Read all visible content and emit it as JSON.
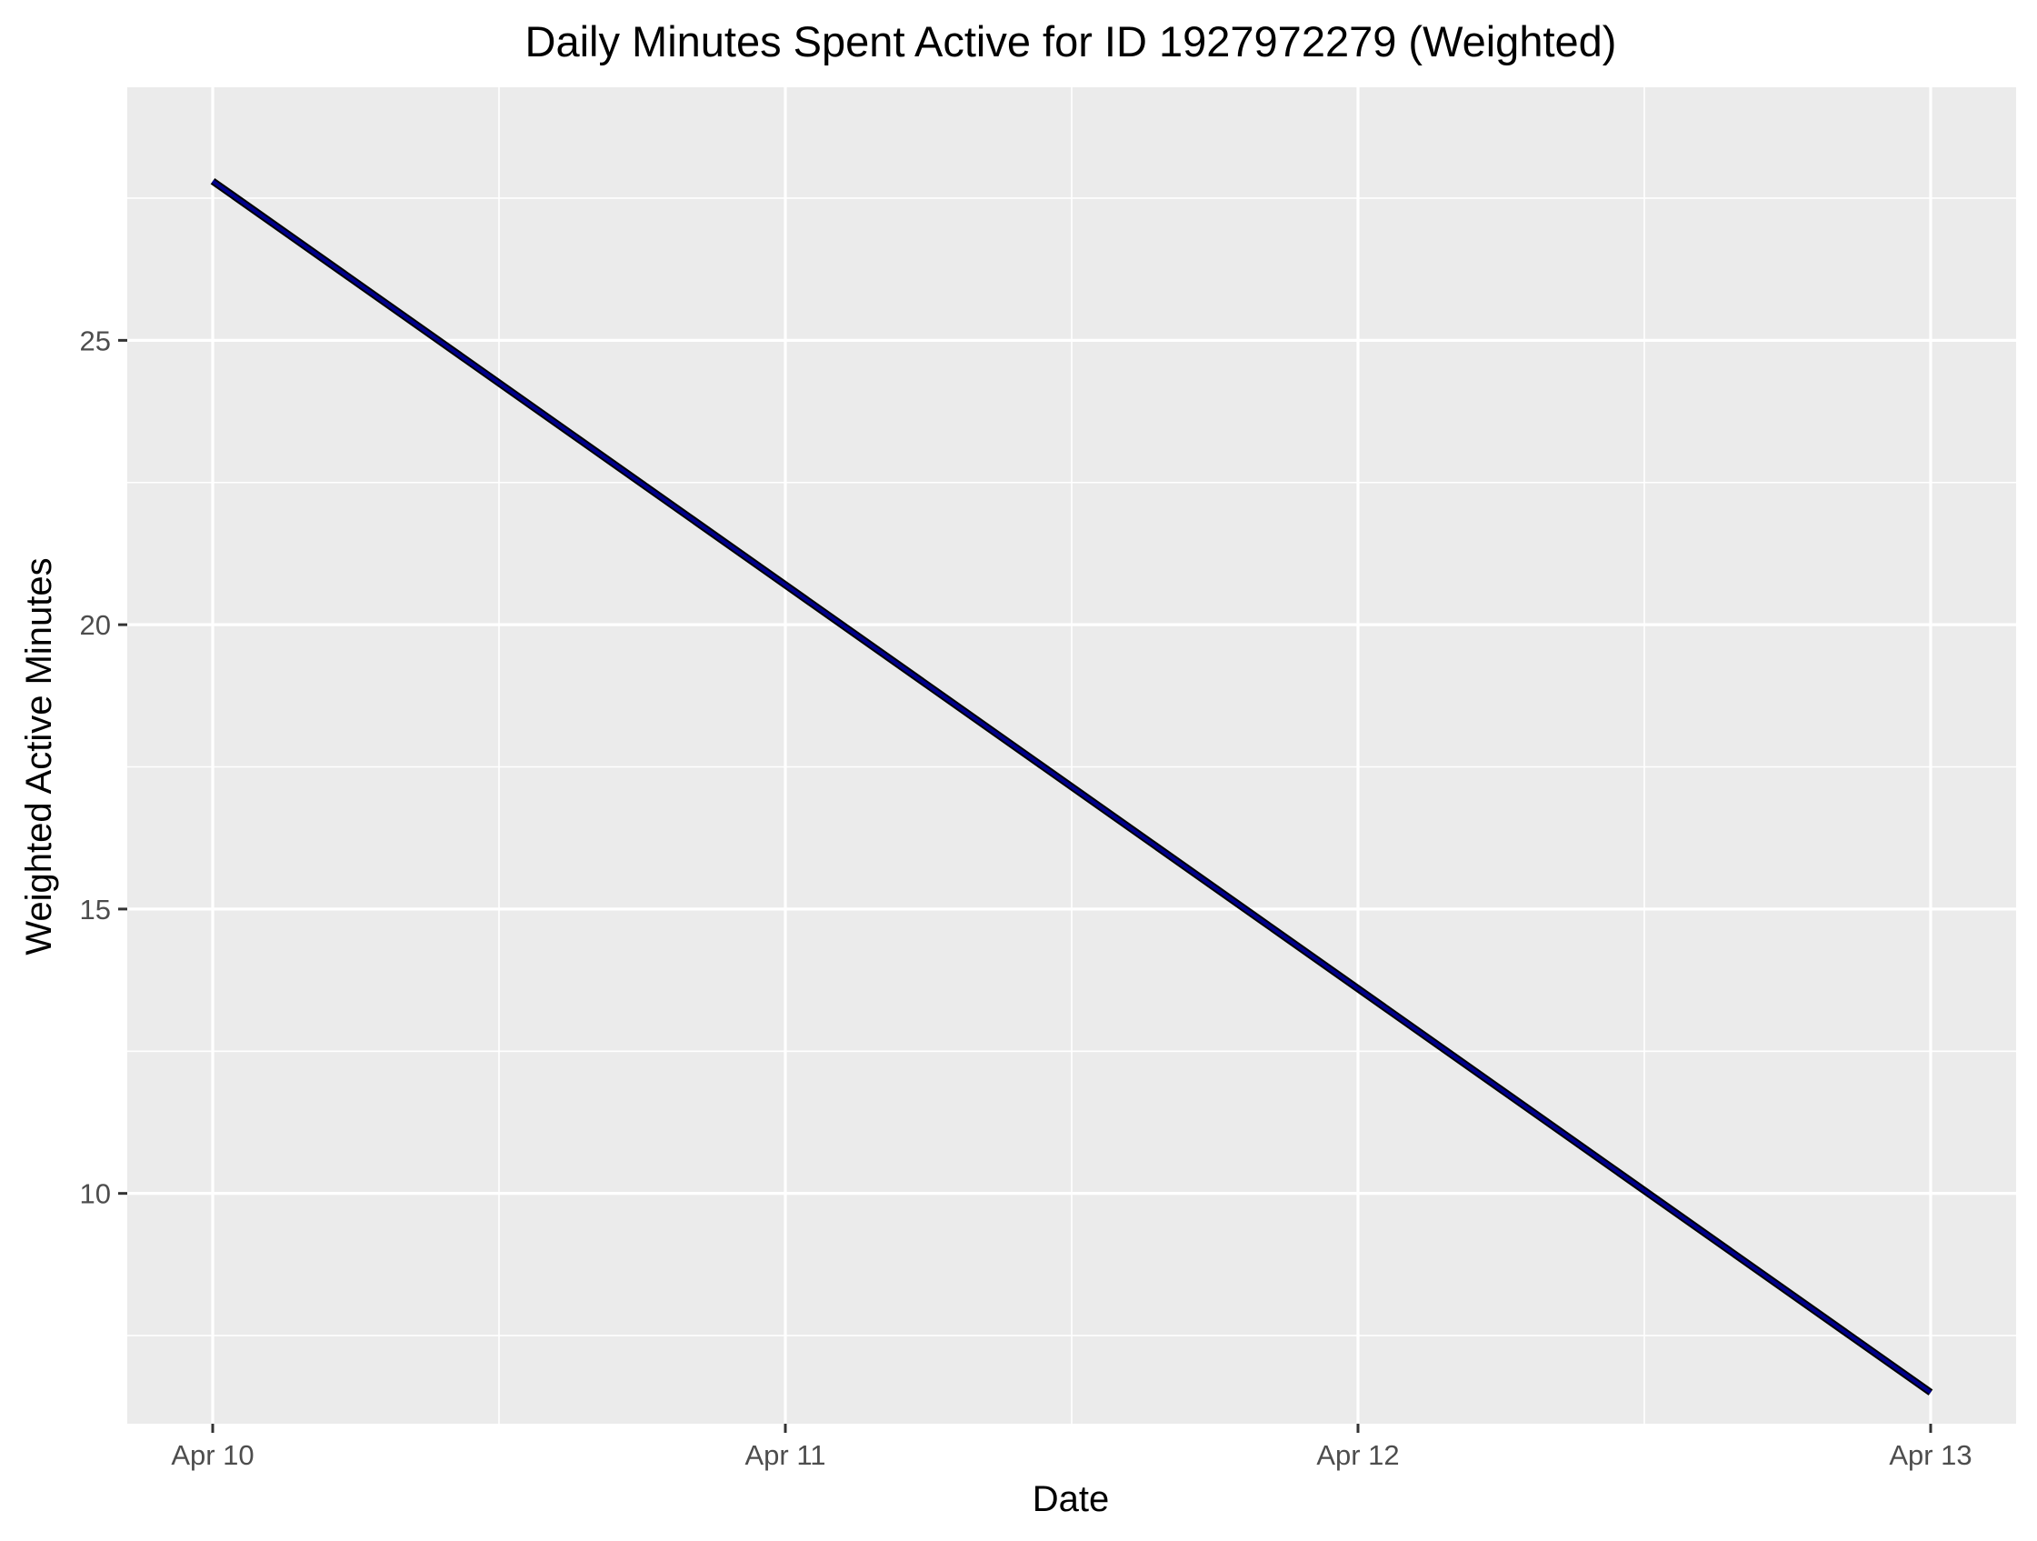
{
  "chart_data": {
    "type": "line",
    "title": "Daily Minutes Spent Active for ID 1927972279 (Weighted)",
    "xlabel": "Date",
    "ylabel": "Weighted Active Minutes",
    "x_tick_labels": [
      "Apr 10",
      "Apr 11",
      "Apr 12",
      "Apr 13"
    ],
    "y_ticks": [
      10,
      15,
      20,
      25
    ],
    "y_tick_labels": [
      "10",
      "15",
      "20",
      "25"
    ],
    "ylim": [
      5.95,
      29.45
    ],
    "x": [
      "Apr 10",
      "Apr 13"
    ],
    "series": [
      {
        "values": [
          27.8,
          6.5
        ],
        "color": "#00008b"
      }
    ],
    "grid": true,
    "panel_background": "#ebebeb",
    "grid_color": "#ffffff"
  }
}
